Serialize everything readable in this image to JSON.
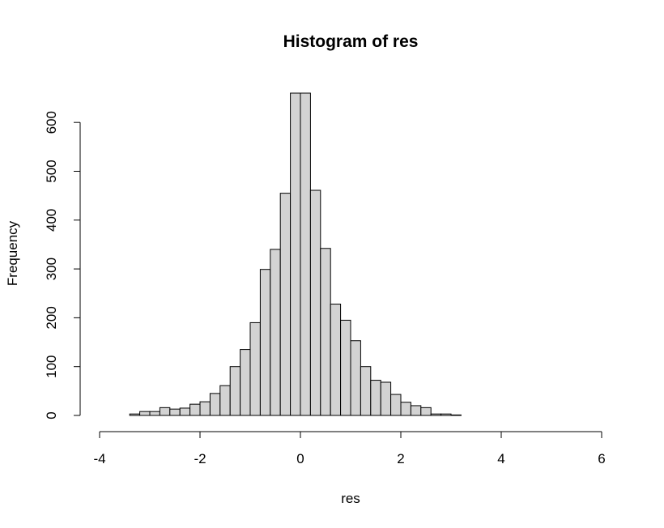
{
  "chart_data": {
    "type": "bar",
    "title": "Histogram of res",
    "xlabel": "res",
    "ylabel": "Frequency",
    "xlim": [
      -4,
      6
    ],
    "ylim": [
      0,
      660
    ],
    "bin_width": 0.2,
    "xticks": [
      -4,
      -2,
      0,
      2,
      4,
      6
    ],
    "yticks": [
      0,
      100,
      200,
      300,
      400,
      500,
      600
    ],
    "xtick_labels": [
      "-4",
      "-2",
      "0",
      "2",
      "4",
      "6"
    ],
    "ytick_labels": [
      "0",
      "100",
      "200",
      "300",
      "400",
      "500",
      "600"
    ],
    "bar_fill": "#d3d3d3",
    "bar_stroke": "#000000",
    "grid": false,
    "bins": [
      {
        "start": -3.4,
        "end": -3.2,
        "count": 3
      },
      {
        "start": -3.2,
        "end": -3.0,
        "count": 8
      },
      {
        "start": -3.0,
        "end": -2.8,
        "count": 8
      },
      {
        "start": -2.8,
        "end": -2.6,
        "count": 16
      },
      {
        "start": -2.6,
        "end": -2.4,
        "count": 13
      },
      {
        "start": -2.4,
        "end": -2.2,
        "count": 15
      },
      {
        "start": -2.2,
        "end": -2.0,
        "count": 23
      },
      {
        "start": -2.0,
        "end": -1.8,
        "count": 28
      },
      {
        "start": -1.8,
        "end": -1.6,
        "count": 45
      },
      {
        "start": -1.6,
        "end": -1.4,
        "count": 61
      },
      {
        "start": -1.4,
        "end": -1.2,
        "count": 100
      },
      {
        "start": -1.2,
        "end": -1.0,
        "count": 135
      },
      {
        "start": -1.0,
        "end": -0.8,
        "count": 190
      },
      {
        "start": -0.8,
        "end": -0.6,
        "count": 299
      },
      {
        "start": -0.6,
        "end": -0.4,
        "count": 340
      },
      {
        "start": -0.4,
        "end": -0.2,
        "count": 455
      },
      {
        "start": -0.2,
        "end": 0.0,
        "count": 660
      },
      {
        "start": 0.0,
        "end": 0.2,
        "count": 660
      },
      {
        "start": 0.2,
        "end": 0.4,
        "count": 461
      },
      {
        "start": 0.4,
        "end": 0.6,
        "count": 342
      },
      {
        "start": 0.6,
        "end": 0.8,
        "count": 228
      },
      {
        "start": 0.8,
        "end": 1.0,
        "count": 195
      },
      {
        "start": 1.0,
        "end": 1.2,
        "count": 153
      },
      {
        "start": 1.2,
        "end": 1.4,
        "count": 100
      },
      {
        "start": 1.4,
        "end": 1.6,
        "count": 72
      },
      {
        "start": 1.6,
        "end": 1.8,
        "count": 68
      },
      {
        "start": 1.8,
        "end": 2.0,
        "count": 43
      },
      {
        "start": 2.0,
        "end": 2.2,
        "count": 27
      },
      {
        "start": 2.2,
        "end": 2.4,
        "count": 20
      },
      {
        "start": 2.4,
        "end": 2.6,
        "count": 16
      },
      {
        "start": 2.6,
        "end": 2.8,
        "count": 3
      },
      {
        "start": 2.8,
        "end": 3.0,
        "count": 3
      },
      {
        "start": 3.0,
        "end": 3.2,
        "count": 1
      },
      {
        "start": 3.2,
        "end": 3.4,
        "count": 0
      },
      {
        "start": 3.4,
        "end": 3.6,
        "count": 0
      },
      {
        "start": 3.6,
        "end": 3.8,
        "count": 0
      },
      {
        "start": 3.8,
        "end": 4.0,
        "count": 0
      },
      {
        "start": 4.0,
        "end": 4.2,
        "count": 0
      },
      {
        "start": 4.2,
        "end": 4.4,
        "count": 0
      },
      {
        "start": 4.4,
        "end": 4.6,
        "count": 0
      },
      {
        "start": 4.6,
        "end": 4.8,
        "count": 0
      },
      {
        "start": 4.8,
        "end": 5.0,
        "count": 0
      },
      {
        "start": 5.0,
        "end": 5.2,
        "count": 0
      },
      {
        "start": 5.2,
        "end": 5.4,
        "count": 0
      },
      {
        "start": 5.4,
        "end": 5.6,
        "count": 0
      },
      {
        "start": 5.6,
        "end": 5.8,
        "count": 0
      },
      {
        "start": 5.8,
        "end": 6.0,
        "count": 0
      }
    ]
  }
}
